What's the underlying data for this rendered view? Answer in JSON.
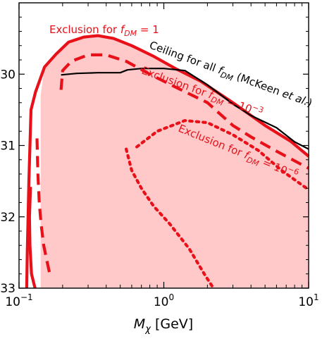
{
  "chart_data": {
    "type": "line",
    "title": "",
    "xlabel": "M_χ [GeV]",
    "ylabel": "",
    "xscale": "log",
    "xlim": [
      0.1,
      10
    ],
    "ylim": [
      33,
      29
    ],
    "y_axis_inverted": true,
    "y_axis_note": "only last digits of tick labels are visible (left side cropped)",
    "grid": false,
    "x_ticks": [
      {
        "value": 0.1,
        "label": "10",
        "exp": "−1"
      },
      {
        "value": 1,
        "label": "10",
        "exp": "0"
      },
      {
        "value": 10,
        "label": "10",
        "exp": "1"
      }
    ],
    "y_ticks": [
      {
        "value": 30,
        "label": "30"
      },
      {
        "value": 31,
        "label": "31"
      },
      {
        "value": 32,
        "label": "32"
      },
      {
        "value": 33,
        "label": "33"
      }
    ],
    "colors": {
      "exclusion": "#e8111a",
      "fill": "#ffc9c9",
      "ceiling": "#000000"
    },
    "series": [
      {
        "key": "excl_1",
        "name": "Exclusion for f_DM = 1",
        "style": "solid",
        "color": "#e8111a",
        "x": [
          0.113,
          0.114,
          0.117,
          0.121,
          0.13,
          0.15,
          0.18,
          0.22,
          0.28,
          0.35,
          0.45,
          0.6,
          0.85,
          1.2,
          1.8,
          3,
          5,
          7.5,
          10
        ],
        "y": [
          33.0,
          32.5,
          31.5,
          30.5,
          30.25,
          29.9,
          29.72,
          29.55,
          29.48,
          29.46,
          29.5,
          29.6,
          29.75,
          29.92,
          30.1,
          30.4,
          30.72,
          30.94,
          31.15
        ]
      },
      {
        "key": "excl_1_lower",
        "name": "",
        "style": "solid",
        "color": "#e8111a",
        "x": [
          0.12,
          0.118,
          0.119,
          0.122,
          0.129
        ],
        "y": [
          31.58,
          32.0,
          32.4,
          32.8,
          33.0
        ]
      },
      {
        "key": "ceiling",
        "name": "Ceiling for all f_DM (McKeen et al.)",
        "style": "solid",
        "color": "#000000",
        "x": [
          0.195,
          0.25,
          0.35,
          0.5,
          0.56,
          0.7,
          1.0,
          1.4,
          2.0,
          3.0,
          4.0,
          6.0,
          8.0,
          10.0
        ],
        "y": [
          30.01,
          29.99,
          29.98,
          29.98,
          29.94,
          29.92,
          29.92,
          29.95,
          30.15,
          30.42,
          30.58,
          30.75,
          30.95,
          31.05
        ]
      },
      {
        "key": "excl_1e-3",
        "name": "Exclusion for f_DM = 10^−3",
        "style": "dashed",
        "color": "#e8111a",
        "x": [
          0.195,
          0.2,
          0.23,
          0.3,
          0.4,
          0.55,
          0.8,
          1.2,
          2.0,
          3.0,
          4.0,
          6.0,
          10.0
        ],
        "y": [
          30.22,
          29.95,
          29.82,
          29.73,
          29.73,
          29.82,
          30.0,
          30.18,
          30.4,
          30.72,
          30.88,
          31.08,
          31.32
        ]
      },
      {
        "key": "excl_1e-3_lower",
        "name": "",
        "style": "dashed",
        "color": "#e8111a",
        "x": [
          0.133,
          0.135,
          0.138,
          0.142,
          0.148,
          0.157,
          0.165
        ],
        "y": [
          30.9,
          31.4,
          31.8,
          32.1,
          32.4,
          32.65,
          32.85
        ]
      },
      {
        "key": "excl_1e-6",
        "name": "Exclusion for f_DM = 10^−6",
        "style": "dotted",
        "color": "#e8111a",
        "x": [
          0.65,
          0.9,
          1.4,
          2.0,
          3.0,
          4.5,
          6.5,
          10.0
        ],
        "y": [
          31.02,
          30.8,
          30.65,
          30.68,
          30.85,
          31.07,
          31.35,
          31.62
        ]
      },
      {
        "key": "excl_1e-6_lower",
        "name": "",
        "style": "dotted",
        "color": "#e8111a",
        "x": [
          0.55,
          0.6,
          0.7,
          0.85,
          1.1,
          1.5,
          1.9,
          2.2
        ],
        "y": [
          31.05,
          31.35,
          31.6,
          31.85,
          32.1,
          32.45,
          32.8,
          33.0
        ]
      }
    ],
    "fill_region": {
      "label": "",
      "boundary_series": "excl_1",
      "left_edge_x": 0.141,
      "fill_to": "bottom"
    },
    "annotations": [
      {
        "key": "a1",
        "text": "Exclusion for f_DM = 1",
        "color": "#e8111a"
      },
      {
        "key": "a2",
        "text": "Ceiling for all f_DM (McKeen et al.)",
        "color": "#000000"
      },
      {
        "key": "a3",
        "text": "Exclusion for f_DM = 10^−3",
        "color": "#e8111a"
      },
      {
        "key": "a4",
        "text": "Exclusion for f_DM = 10^−6",
        "color": "#e8111a"
      }
    ]
  }
}
